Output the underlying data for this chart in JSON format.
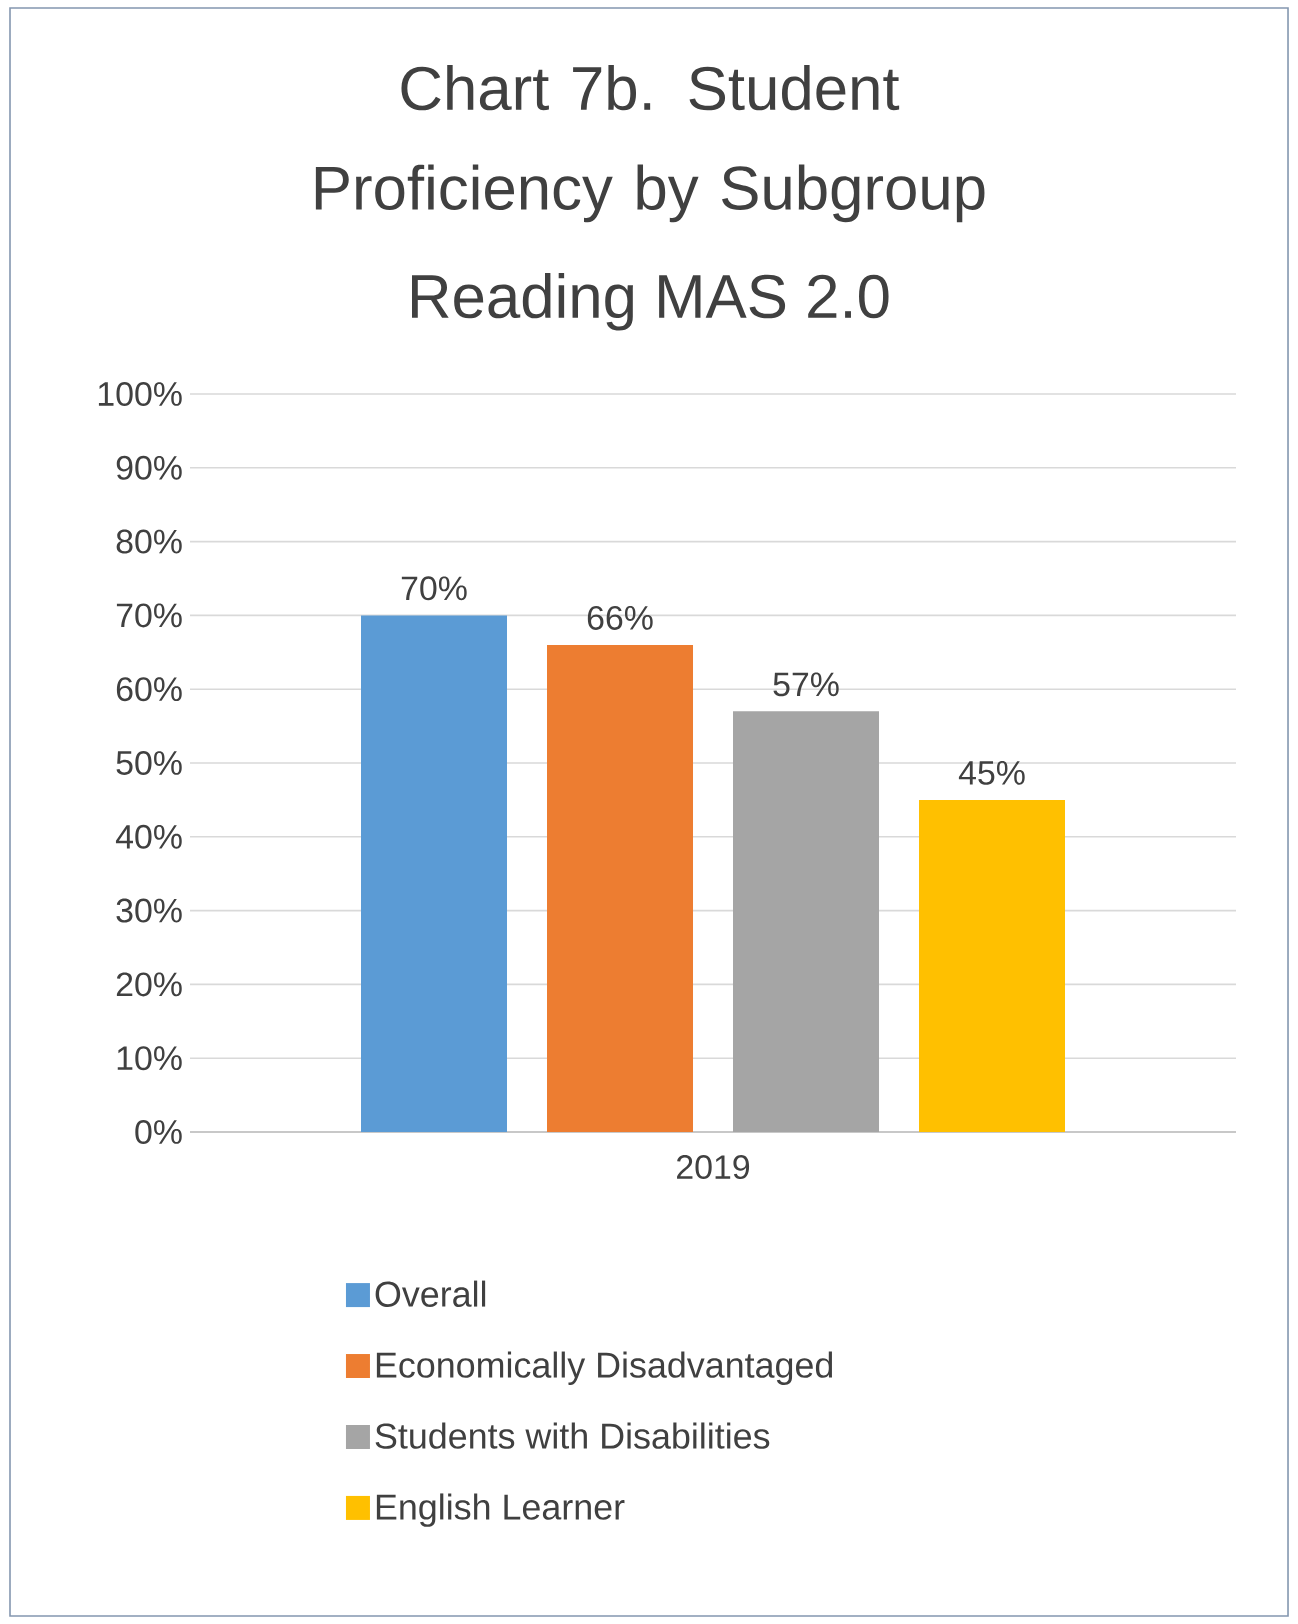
{
  "chart_data": {
    "type": "bar",
    "title": "Chart 7b. Student Proficiency by Subgroup",
    "subtitle": "Reading MAS 2.0",
    "categories": [
      "2019"
    ],
    "series": [
      {
        "name": "Overall",
        "color": "#5b9bd5",
        "values": [
          70
        ],
        "value_labels": [
          "70%"
        ]
      },
      {
        "name": "Economically Disadvantaged",
        "color": "#ed7d31",
        "values": [
          66
        ],
        "value_labels": [
          "66%"
        ]
      },
      {
        "name": "Students with Disabilities",
        "color": "#a5a5a5",
        "values": [
          57
        ],
        "value_labels": [
          "57%"
        ]
      },
      {
        "name": "English Learner",
        "color": "#ffc000",
        "values": [
          45
        ],
        "value_labels": [
          "45%"
        ]
      }
    ],
    "ylim": [
      0,
      100
    ],
    "yticks": [
      {
        "value": 0,
        "label": "0%"
      },
      {
        "value": 10,
        "label": "10%"
      },
      {
        "value": 20,
        "label": "20%"
      },
      {
        "value": 30,
        "label": "30%"
      },
      {
        "value": 40,
        "label": "40%"
      },
      {
        "value": 50,
        "label": "50%"
      },
      {
        "value": 60,
        "label": "60%"
      },
      {
        "value": 70,
        "label": "70%"
      },
      {
        "value": 80,
        "label": "80%"
      },
      {
        "value": 90,
        "label": "90%"
      },
      {
        "value": 100,
        "label": "100%"
      }
    ],
    "grid": "y",
    "legend": "bottom"
  }
}
